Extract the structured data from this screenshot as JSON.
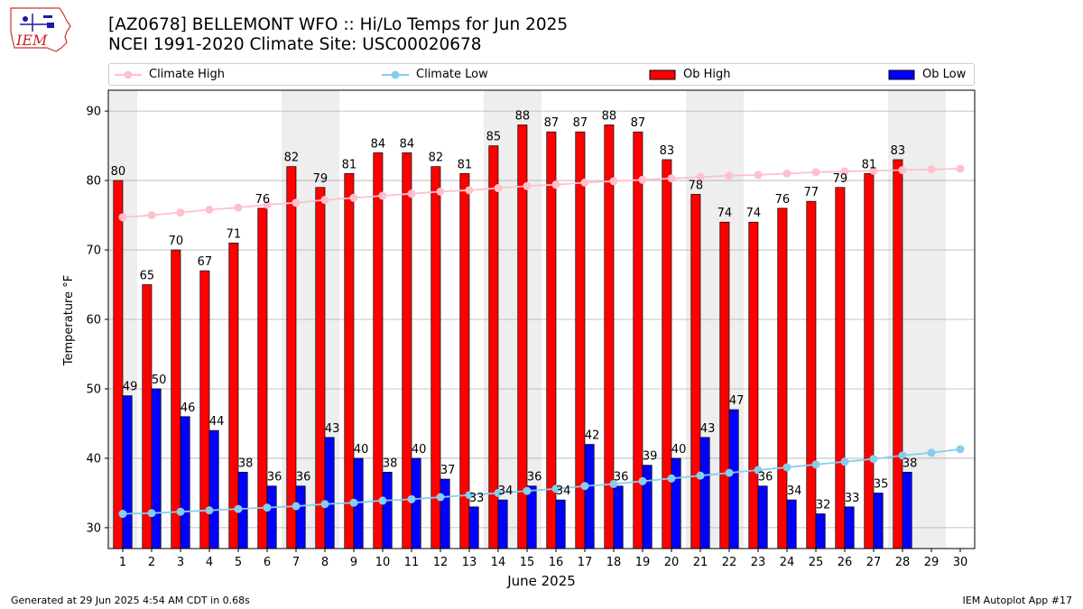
{
  "header": {
    "logo_text": "IEM",
    "title_line1": "[AZ0678] BELLEMONT WFO :: Hi/Lo Temps for Jun 2025",
    "title_line2": "NCEI 1991-2020 Climate Site: USC00020678"
  },
  "legend": {
    "climate_high": "Climate High",
    "climate_low": "Climate Low",
    "ob_high": "Ob High",
    "ob_low": "Ob Low"
  },
  "colors": {
    "ob_high": "#ff0000",
    "ob_low": "#0000ff",
    "climate_high": "#ffc0cb",
    "climate_low": "#87ceeb",
    "weekend_shade": "#eeeeee",
    "grid": "#b0b0b0"
  },
  "footer": {
    "generated": "Generated at 29 Jun 2025 4:54 AM CDT in 0.68s",
    "app": "IEM Autoplot App #17"
  },
  "chart_data": {
    "type": "bar",
    "xlabel": "June 2025",
    "ylabel": "Temperature °F",
    "ylim": [
      27,
      93
    ],
    "yticks": [
      30,
      40,
      50,
      60,
      70,
      80,
      90
    ],
    "grid": "horizontal",
    "legend_position": "top",
    "categories": [
      1,
      2,
      3,
      4,
      5,
      6,
      7,
      8,
      9,
      10,
      11,
      12,
      13,
      14,
      15,
      16,
      17,
      18,
      19,
      20,
      21,
      22,
      23,
      24,
      25,
      26,
      27,
      28,
      29,
      30
    ],
    "shaded_days": [
      1,
      7,
      8,
      14,
      15,
      21,
      22,
      28,
      29
    ],
    "series": [
      {
        "name": "Ob High",
        "kind": "bar",
        "values": [
          80,
          65,
          70,
          67,
          71,
          76,
          82,
          79,
          81,
          84,
          84,
          82,
          81,
          85,
          88,
          87,
          87,
          88,
          87,
          83,
          78,
          74,
          74,
          76,
          77,
          79,
          81,
          83,
          null,
          null
        ]
      },
      {
        "name": "Ob Low",
        "kind": "bar",
        "values": [
          49,
          50,
          46,
          44,
          38,
          36,
          36,
          43,
          40,
          38,
          40,
          37,
          33,
          34,
          36,
          34,
          42,
          36,
          39,
          40,
          43,
          47,
          36,
          34,
          32,
          33,
          35,
          38,
          null,
          null
        ]
      },
      {
        "name": "Climate High",
        "kind": "line",
        "values": [
          74.7,
          75.0,
          75.4,
          75.8,
          76.1,
          76.5,
          76.8,
          77.2,
          77.5,
          77.8,
          78.1,
          78.4,
          78.6,
          78.9,
          79.2,
          79.4,
          79.7,
          79.9,
          80.1,
          80.3,
          80.5,
          80.7,
          80.8,
          81.0,
          81.2,
          81.3,
          81.4,
          81.5,
          81.6,
          81.7
        ]
      },
      {
        "name": "Climate Low",
        "kind": "line",
        "values": [
          32.0,
          32.1,
          32.3,
          32.5,
          32.7,
          32.9,
          33.1,
          33.4,
          33.6,
          33.9,
          34.1,
          34.4,
          34.7,
          35.0,
          35.3,
          35.6,
          36.0,
          36.3,
          36.7,
          37.1,
          37.5,
          37.9,
          38.3,
          38.7,
          39.1,
          39.5,
          39.9,
          40.4,
          40.8,
          41.3
        ]
      }
    ]
  }
}
